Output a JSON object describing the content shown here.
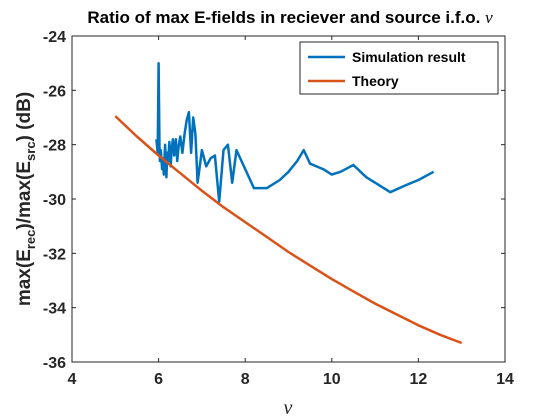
{
  "chart_data": {
    "type": "line",
    "title": "Ratio of max E-fields in reciever and source i.f.o.",
    "title_symbol": "ν",
    "xlabel": "ν",
    "ylabel": {
      "prefix": "max(E",
      "sub1": "rec",
      "middle": ")/max(E",
      "sub2": "src",
      "suffix": ") (dB)"
    },
    "xlim": [
      4,
      14
    ],
    "ylim": [
      -36,
      -24
    ],
    "xticks": [
      4,
      6,
      8,
      10,
      12,
      14
    ],
    "yticks": [
      -36,
      -34,
      -32,
      -30,
      -28,
      -26,
      -24
    ],
    "xtick_labels": [
      "4",
      "6",
      "8",
      "10",
      "12",
      "14"
    ],
    "ytick_labels": [
      "-36",
      "-34",
      "-32",
      "-30",
      "-28",
      "-26",
      "-24"
    ],
    "grid": false,
    "legend_position": "top-right",
    "series": [
      {
        "name": "Simulation result",
        "color": "#0072BD",
        "x": [
          5.95,
          5.98,
          6.0,
          6.02,
          6.03,
          6.05,
          6.08,
          6.1,
          6.12,
          6.15,
          6.18,
          6.2,
          6.22,
          6.25,
          6.28,
          6.3,
          6.33,
          6.36,
          6.4,
          6.43,
          6.46,
          6.5,
          6.55,
          6.6,
          6.65,
          6.7,
          6.75,
          6.8,
          6.85,
          6.9,
          7.0,
          7.1,
          7.2,
          7.3,
          7.4,
          7.5,
          7.6,
          7.7,
          7.8,
          8.0,
          8.2,
          8.5,
          8.8,
          9.0,
          9.2,
          9.35,
          9.5,
          9.8,
          10.0,
          10.2,
          10.5,
          10.8,
          11.0,
          11.35,
          11.7,
          12.0,
          12.35
        ],
        "y": [
          -27.8,
          -28.3,
          -25.0,
          -28.1,
          -28.6,
          -28.2,
          -28.9,
          -28.5,
          -29.1,
          -28.0,
          -29.2,
          -28.3,
          -28.6,
          -27.9,
          -28.8,
          -28.2,
          -27.8,
          -28.4,
          -27.8,
          -28.6,
          -28.1,
          -27.7,
          -28.3,
          -27.6,
          -27.1,
          -26.8,
          -28.3,
          -27.0,
          -27.6,
          -29.4,
          -28.2,
          -28.8,
          -28.5,
          -28.4,
          -30.1,
          -28.2,
          -28.0,
          -29.4,
          -28.2,
          -28.9,
          -29.6,
          -29.6,
          -29.3,
          -29.0,
          -28.6,
          -28.2,
          -28.7,
          -28.9,
          -29.1,
          -29.0,
          -28.75,
          -29.2,
          -29.4,
          -29.75,
          -29.5,
          -29.3,
          -29.0
        ]
      },
      {
        "name": "Theory",
        "color": "#D95319",
        "x": [
          5.0,
          5.5,
          6.0,
          6.5,
          7.0,
          7.5,
          8.0,
          8.5,
          9.0,
          9.5,
          10.0,
          10.5,
          11.0,
          11.5,
          12.0,
          12.5,
          13.0
        ],
        "y": [
          -26.95,
          -27.7,
          -28.4,
          -29.05,
          -29.7,
          -30.3,
          -30.85,
          -31.4,
          -31.95,
          -32.45,
          -32.95,
          -33.4,
          -33.85,
          -34.25,
          -34.65,
          -35.0,
          -35.3
        ]
      }
    ]
  }
}
